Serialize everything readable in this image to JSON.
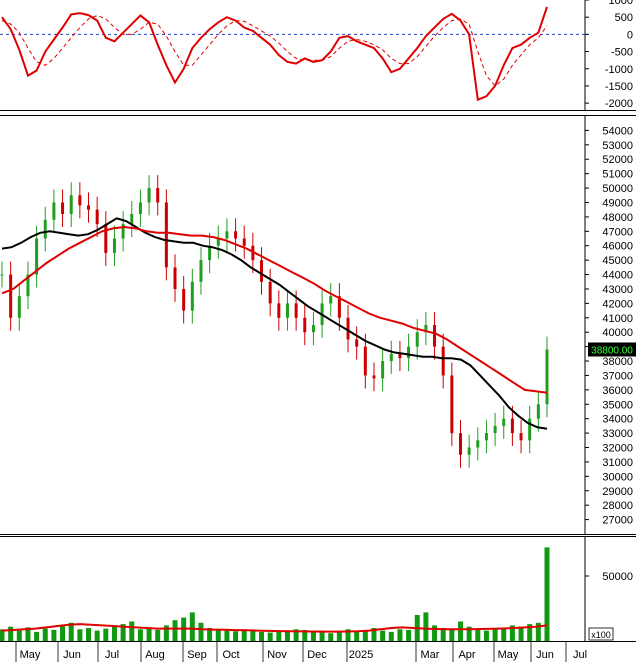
{
  "chart_data": [
    {
      "panel": "oscillator",
      "type": "line",
      "ylim": [
        -2200,
        1000
      ],
      "yticks": [
        "1000",
        "500",
        "0",
        "-500",
        "-1000",
        "-1500",
        "-2000"
      ],
      "zero_line": 0,
      "series": [
        {
          "color": "#e00000",
          "style": "solid",
          "values": [
            500,
            150,
            -450,
            -1200,
            -1050,
            -500,
            -150,
            200,
            580,
            620,
            560,
            400,
            -100,
            -200,
            50,
            300,
            550,
            350,
            -300,
            -900,
            -1400,
            -1000,
            -400,
            -100,
            150,
            350,
            500,
            400,
            200,
            100,
            -100,
            -300,
            -600,
            -800,
            -850,
            -700,
            -800,
            -750,
            -500,
            -100,
            -50,
            -200,
            -300,
            -400,
            -700,
            -1100,
            -1000,
            -700,
            -400,
            -50,
            200,
            450,
            600,
            400,
            0,
            -1900,
            -1800,
            -1500,
            -900,
            -400,
            -300,
            -100,
            50,
            800
          ]
        },
        {
          "color": "#e00000",
          "style": "dashed",
          "values": [
            400,
            300,
            50,
            -400,
            -800,
            -900,
            -700,
            -400,
            -100,
            200,
            450,
            550,
            450,
            200,
            0,
            0,
            150,
            350,
            300,
            -50,
            -500,
            -900,
            -900,
            -600,
            -300,
            0,
            250,
            400,
            380,
            250,
            100,
            -50,
            -250,
            -500,
            -700,
            -750,
            -750,
            -750,
            -650,
            -400,
            -200,
            -150,
            -200,
            -300,
            -450,
            -700,
            -850,
            -850,
            -650,
            -350,
            -50,
            200,
            400,
            450,
            300,
            -500,
            -1200,
            -1500,
            -1300,
            -900,
            -600,
            -300,
            -100,
            250
          ]
        }
      ]
    },
    {
      "panel": "price",
      "type": "candlestick",
      "ylim": [
        26000,
        55000
      ],
      "yticks": [
        "54000",
        "53000",
        "52000",
        "51000",
        "50000",
        "49000",
        "48000",
        "47000",
        "46000",
        "45000",
        "44000",
        "43000",
        "42000",
        "41000",
        "40000",
        "39000",
        "38000",
        "37000",
        "36000",
        "35000",
        "34000",
        "33000",
        "32000",
        "31000",
        "30000",
        "29000",
        "28000",
        "27000"
      ],
      "last_price_label": "38800.00",
      "x_labels": [
        "May",
        "Jun",
        "Jul",
        "Aug",
        "Sep",
        "Oct",
        "Nov",
        "Dec",
        "2025",
        "Mar",
        "Apr",
        "May",
        "Jun",
        "Jul"
      ],
      "close": [
        44000,
        41000,
        42500,
        44000,
        46500,
        47800,
        49000,
        48200,
        49500,
        48800,
        48500,
        47500,
        45500,
        46500,
        47500,
        48200,
        49000,
        50000,
        49000,
        44500,
        43000,
        41500,
        43500,
        45000,
        46000,
        46500,
        47000,
        46500,
        46000,
        45000,
        43500,
        42000,
        41000,
        42000,
        41000,
        40000,
        40500,
        42000,
        42500,
        41000,
        39500,
        39000,
        37000,
        36800,
        38000,
        38500,
        38200,
        39000,
        40000,
        40500,
        39000,
        37000,
        33000,
        31500,
        32000,
        32500,
        33000,
        33500,
        34000,
        33000,
        32500,
        34000,
        35000,
        38800
      ],
      "series": [
        {
          "name": "",
          "color": "#000000",
          "values": [
            45800,
            45900,
            46200,
            46600,
            46900,
            47000,
            46900,
            46800,
            46700,
            46800,
            47100,
            47500,
            47900,
            47700,
            47300,
            46900,
            46600,
            46400,
            46300,
            46200,
            46200,
            46000,
            45900,
            45700,
            45400,
            45000,
            44500,
            44100,
            43700,
            43300,
            42800,
            42300,
            41800,
            41400,
            41000,
            40600,
            40200,
            39800,
            39400,
            39100,
            38800,
            38600,
            38500,
            38400,
            38300,
            38300,
            38200,
            38200,
            38100,
            37700,
            37000,
            36300,
            35600,
            34800,
            34200,
            33700,
            33400,
            33300
          ]
        },
        {
          "name": "",
          "color": "#e00000",
          "values": [
            42700,
            43000,
            43600,
            44200,
            44800,
            45300,
            45800,
            46200,
            46600,
            47000,
            47200,
            47300,
            47200,
            47000,
            46900,
            46900,
            46800,
            46700,
            46700,
            46600,
            46400,
            46100,
            45800,
            45400,
            45000,
            44600,
            44200,
            43800,
            43400,
            42900,
            42500,
            42100,
            41700,
            41300,
            41000,
            40800,
            40600,
            40300,
            40100,
            39900,
            39500,
            39000,
            38500,
            38000,
            37500,
            37000,
            36500,
            36000,
            35900,
            35800
          ]
        }
      ]
    },
    {
      "panel": "volume",
      "type": "bar",
      "ylim": [
        0,
        80000
      ],
      "yticks": [
        "50000"
      ],
      "unit_label": "x100",
      "values": [
        9000,
        11000,
        8000,
        10500,
        7000,
        9500,
        8500,
        12000,
        14000,
        9000,
        10000,
        8000,
        9500,
        11000,
        13000,
        15000,
        9000,
        10000,
        8500,
        12000,
        16000,
        18000,
        22000,
        14000,
        10000,
        9000,
        8000,
        7500,
        9000,
        8000,
        7000,
        6500,
        8000,
        7000,
        9000,
        8500,
        7500,
        8000,
        6000,
        7000,
        9000,
        8000,
        7500,
        10000,
        8000,
        7000,
        9000,
        8500,
        20000,
        22000,
        12000,
        10000,
        9000,
        15000,
        11000,
        9000,
        8000,
        9500,
        10000,
        12000,
        11000,
        13000,
        14000,
        72000
      ],
      "ma": [
        8000,
        8500,
        9000,
        9500,
        10500,
        11500,
        12500,
        13000,
        12500,
        12000,
        11500,
        11000,
        10500,
        10000,
        9500,
        9500,
        9500,
        9500,
        9000,
        8800,
        8600,
        8400,
        8200,
        8000,
        7800,
        7600,
        7500,
        7400,
        7300,
        7200,
        7200,
        7300,
        7500,
        8000,
        9000,
        10000,
        10500,
        10000,
        9500,
        9200,
        9000,
        9000,
        9100,
        9200,
        9400,
        9600,
        10000,
        10500,
        11000,
        12000
      ]
    }
  ]
}
